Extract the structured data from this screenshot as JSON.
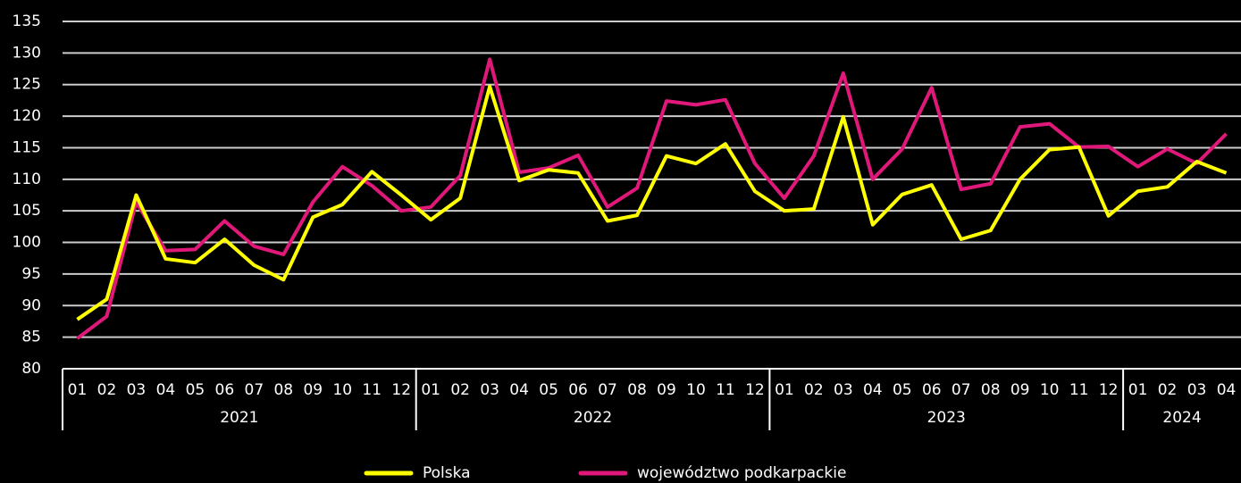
{
  "chart_data": {
    "type": "line",
    "categories": [
      "01",
      "02",
      "03",
      "04",
      "05",
      "06",
      "07",
      "08",
      "09",
      "10",
      "11",
      "12",
      "01",
      "02",
      "03",
      "04",
      "05",
      "06",
      "07",
      "08",
      "09",
      "10",
      "11",
      "12",
      "01",
      "02",
      "03",
      "04",
      "05",
      "06",
      "07",
      "08",
      "09",
      "10",
      "11",
      "12",
      "01",
      "02",
      "03",
      "04"
    ],
    "year_labels": [
      "2021",
      "2022",
      "2023",
      "2024"
    ],
    "series": [
      {
        "name": "Polska",
        "color": "#ffff00",
        "values": [
          87.8,
          91,
          107.5,
          97.4,
          96.8,
          100.5,
          96.4,
          94.1,
          104,
          106,
          111.2,
          107.5,
          103.6,
          107,
          124.7,
          109.8,
          111.5,
          111,
          103.4,
          104.3,
          113.7,
          112.5,
          115.6,
          108.1,
          105,
          105.3,
          119.9,
          102.8,
          107.6,
          109.1,
          100.5,
          101.9,
          110,
          114.7,
          115.1,
          104.2,
          108.1,
          108.8,
          112.8,
          111
        ]
      },
      {
        "name": "województwo podkarpackie",
        "color": "#e0187a",
        "values": [
          84.8,
          88.3,
          106.4,
          98.7,
          98.9,
          103.4,
          99.4,
          98.1,
          106.4,
          112,
          109,
          105,
          105.6,
          110.6,
          129,
          111.1,
          111.8,
          113.8,
          105.6,
          108.6,
          122.4,
          121.8,
          122.6,
          112.5,
          107,
          113.7,
          126.8,
          110,
          114.8,
          124.5,
          108.4,
          109.3,
          118.3,
          118.8,
          115.1,
          115.2,
          112,
          114.8,
          112.5,
          117.2
        ]
      }
    ],
    "ylim": [
      80,
      135
    ],
    "yticks": [
      80,
      85,
      90,
      95,
      100,
      105,
      110,
      115,
      120,
      125,
      130,
      135
    ],
    "grid": true
  }
}
